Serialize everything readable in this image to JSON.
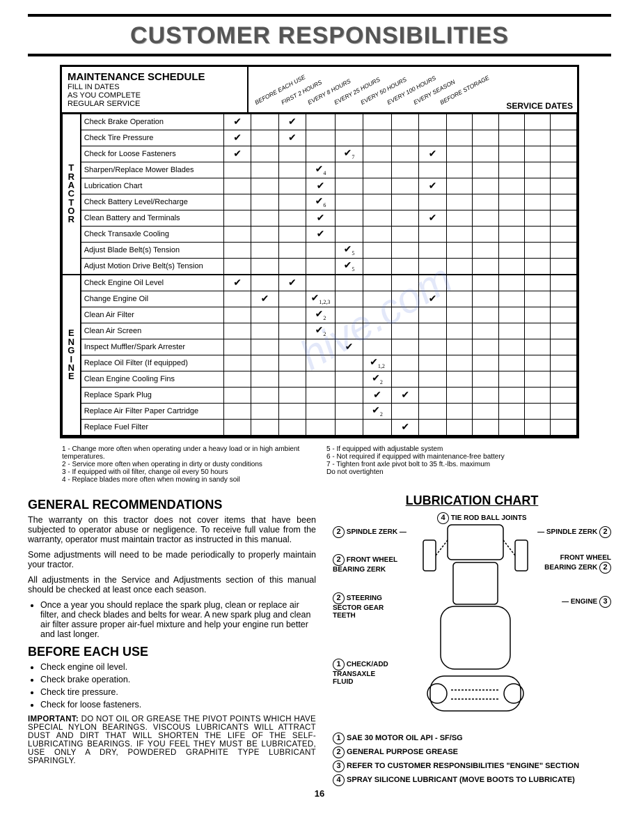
{
  "page_title": "CUSTOMER RESPONSIBILITIES",
  "watermark": "hive.com",
  "page_number": "16",
  "schedule": {
    "header_title": "MAINTENANCE SCHEDULE",
    "header_sub": "FILL IN DATES\nAS YOU COMPLETE\nREGULAR SERVICE",
    "columns": [
      "BEFORE EACH USE",
      "FIRST 2 HOURS",
      "EVERY 8 HOURS",
      "EVERY 25 HOURS",
      "EVERY 50 HOURS",
      "EVERY 100 HOURS",
      "EVERY SEASON",
      "BEFORE STORAGE"
    ],
    "service_dates_label": "SERVICE DATES",
    "sections": [
      {
        "label": "TRACTOR",
        "rows": [
          {
            "task": "Check Brake Operation",
            "marks": {
              "0": "✔",
              "2": "✔"
            }
          },
          {
            "task": "Check Tire Pressure",
            "marks": {
              "0": "✔",
              "2": "✔"
            }
          },
          {
            "task": "Check for Loose Fasteners",
            "marks": {
              "0": "✔",
              "4": "✔",
              "sub4": "7",
              "7": "✔"
            }
          },
          {
            "task": "Sharpen/Replace Mower Blades",
            "marks": {
              "3": "✔",
              "sub3": "4"
            }
          },
          {
            "task": "Lubrication Chart",
            "marks": {
              "3": "✔",
              "7": "✔"
            }
          },
          {
            "task": "Check Battery Level/Recharge",
            "marks": {
              "3": "✔",
              "sub3": "6"
            }
          },
          {
            "task": "Clean Battery and Terminals",
            "marks": {
              "3": "✔",
              "7": "✔"
            }
          },
          {
            "task": "Check Transaxle Cooling",
            "marks": {
              "3": "✔"
            }
          },
          {
            "task": "Adjust Blade Belt(s) Tension",
            "marks": {
              "4": "✔",
              "sub4": "5"
            }
          },
          {
            "task": "Adjust Motion Drive Belt(s) Tension",
            "marks": {
              "4": "✔",
              "sub4": "5"
            }
          }
        ]
      },
      {
        "label": "ENGINE",
        "rows": [
          {
            "task": "Check Engine Oil Level",
            "marks": {
              "0": "✔",
              "2": "✔"
            }
          },
          {
            "task": "Change Engine Oil",
            "marks": {
              "1": "✔",
              "3": "✔",
              "sub3": "1,2,3",
              "7": "✔"
            }
          },
          {
            "task": "Clean Air Filter",
            "marks": {
              "3": "✔",
              "sub3": "2"
            }
          },
          {
            "task": "Clean Air Screen",
            "marks": {
              "3": "✔",
              "sub3": "2"
            }
          },
          {
            "task": "Inspect Muffler/Spark Arrester",
            "marks": {
              "4": "✔"
            }
          },
          {
            "task": "Replace Oil Filter (If equipped)",
            "marks": {
              "5": "✔",
              "sub5": "1,2"
            }
          },
          {
            "task": "Clean Engine Cooling Fins",
            "marks": {
              "5": "✔",
              "sub5": "2"
            }
          },
          {
            "task": "Replace Spark Plug",
            "marks": {
              "5": "✔",
              "6": "✔"
            }
          },
          {
            "task": "Replace Air Filter Paper Cartridge",
            "marks": {
              "5": "✔",
              "sub5": "2"
            }
          },
          {
            "task": "Replace Fuel Filter",
            "marks": {
              "6": "✔"
            }
          }
        ]
      }
    ]
  },
  "footnotes_left": [
    "1 - Change more often when operating under a heavy load or in high ambient temperatures.",
    "2 - Service more often when operating in dirty or dusty conditions",
    "3 - If equipped with oil filter, change oil every 50 hours",
    "4 - Replace blades more often when mowing in sandy soil"
  ],
  "footnotes_right": [
    "5 - If equipped with adjustable system",
    "6 - Not required if equipped with maintenance-free battery",
    "7 - Tighten front axle pivot bolt to 35 ft.-lbs. maximum",
    "     Do not overtighten"
  ],
  "general": {
    "title": "GENERAL RECOMMENDATIONS",
    "p1": "The warranty on this tractor does not cover items that have been subjected to operator abuse or negligence. To receive full value from the warranty, operator must maintain tractor as instructed in this manual.",
    "p2": "Some adjustments will need to be made periodically to properly maintain your tractor.",
    "p3": "All adjustments in the Service and Adjustments section of this manual should be checked at least once each season.",
    "bullet": "Once a year you should replace the spark plug, clean or replace air filter, and check blades and belts for wear. A new spark plug and clean air filter assure proper air-fuel mixture and help your engine run better and last longer."
  },
  "before": {
    "title": "BEFORE EACH USE",
    "items": [
      "Check engine oil level.",
      "Check brake operation.",
      "Check tire pressure.",
      "Check for loose fasteners."
    ],
    "important_label": "IMPORTANT:",
    "important": " DO NOT OIL OR GREASE THE PIVOT POINTS WHICH HAVE SPECIAL NYLON BEARINGS. VISCOUS LUBRICANTS WILL ATTRACT DUST AND DIRT THAT WILL SHORTEN THE LIFE OF THE SELF-LUBRICATING BEARINGS. IF YOU FEEL THEY MUST BE LUBRICATED, USE ONLY A DRY, POWDERED GRAPHITE TYPE LUBRICANT SPARINGLY."
  },
  "lube": {
    "title": "LUBRICATION CHART",
    "labels": {
      "tie_rod": "TIE ROD BALL JOINTS",
      "spindle_l": "SPINDLE ZERK",
      "spindle_r": "SPINDLE ZERK",
      "front_wheel_l": "FRONT WHEEL\nBEARING ZERK",
      "front_wheel_r": "FRONT WHEEL\nBEARING ZERK",
      "steering": "STEERING\nSECTOR GEAR\nTEETH",
      "engine": "ENGINE",
      "transaxle": "CHECK/ADD\nTRANSAXLE\nFLUID"
    },
    "legend": [
      {
        "n": "1",
        "t": "SAE 30 MOTOR OIL API - SF/SG"
      },
      {
        "n": "2",
        "t": "GENERAL PURPOSE GREASE"
      },
      {
        "n": "3",
        "t": "REFER TO CUSTOMER RESPONSIBILITIES \"ENGINE\" SECTION"
      },
      {
        "n": "4",
        "t": "SPRAY SILICONE LUBRICANT (MOVE BOOTS TO LUBRICATE)"
      }
    ]
  }
}
